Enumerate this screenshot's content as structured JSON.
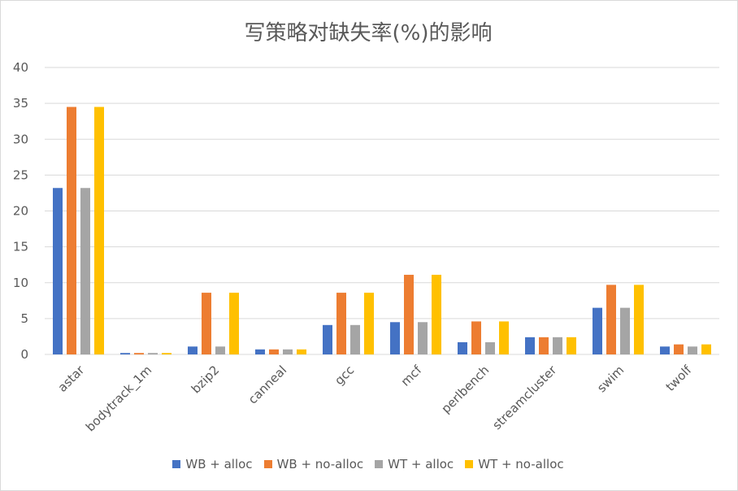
{
  "chart_data": {
    "type": "bar",
    "title": "写策略对缺失率(%)的影响",
    "xlabel": "",
    "ylabel": "",
    "ylim": [
      0,
      40
    ],
    "yticks": [
      0,
      5,
      10,
      15,
      20,
      25,
      30,
      35,
      40
    ],
    "grid": true,
    "legend_position": "bottom",
    "categories": [
      "astar",
      "bodytrack_1m",
      "bzip2",
      "canneal",
      "gcc",
      "mcf",
      "perlbench",
      "streamcluster",
      "swim",
      "twolf"
    ],
    "series": [
      {
        "name": "WB + alloc",
        "color": "#4472C4",
        "values": [
          23.2,
          0.2,
          1.1,
          0.7,
          4.1,
          4.5,
          1.7,
          2.4,
          6.5,
          1.1
        ]
      },
      {
        "name": "WB + no-alloc",
        "color": "#ED7D31",
        "values": [
          34.5,
          0.2,
          8.6,
          0.7,
          8.6,
          11.1,
          4.6,
          2.4,
          9.7,
          1.4
        ]
      },
      {
        "name": "WT + alloc",
        "color": "#A5A5A5",
        "values": [
          23.2,
          0.2,
          1.1,
          0.7,
          4.1,
          4.5,
          1.7,
          2.4,
          6.5,
          1.1
        ]
      },
      {
        "name": "WT + no-alloc",
        "color": "#FFC000",
        "values": [
          34.5,
          0.2,
          8.6,
          0.7,
          8.6,
          11.1,
          4.6,
          2.4,
          9.7,
          1.4
        ]
      }
    ]
  }
}
